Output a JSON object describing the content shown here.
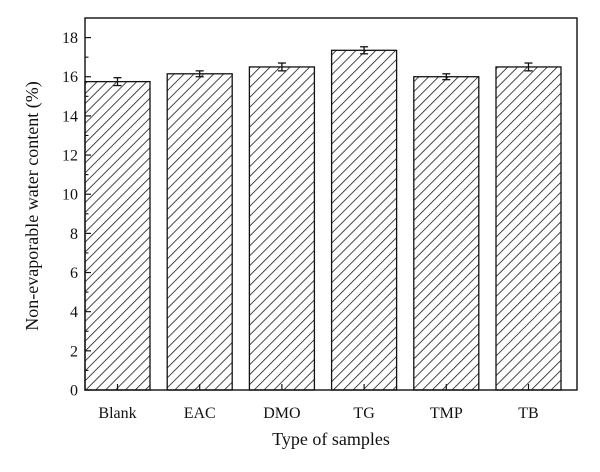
{
  "chart_data": {
    "type": "bar",
    "title": "",
    "xlabel": "Type of samples",
    "ylabel": "Non-evaporable water content (%)",
    "categories": [
      "Blank",
      "EAC",
      "DMO",
      "TG",
      "TMP",
      "TB"
    ],
    "values": [
      15.75,
      16.15,
      16.5,
      17.35,
      16.0,
      16.5
    ],
    "error": [
      0.2,
      0.15,
      0.2,
      0.18,
      0.15,
      0.2
    ],
    "ylim": [
      0,
      19
    ],
    "yticks": [
      0,
      2,
      4,
      6,
      8,
      10,
      12,
      14,
      16,
      18
    ],
    "ytick_labels": [
      "0",
      "2",
      "4",
      "6",
      "8",
      "10",
      "12",
      "14",
      "16",
      "18"
    ],
    "fill_pattern": "diagonal-hatch",
    "grid": false,
    "legend": "none"
  }
}
